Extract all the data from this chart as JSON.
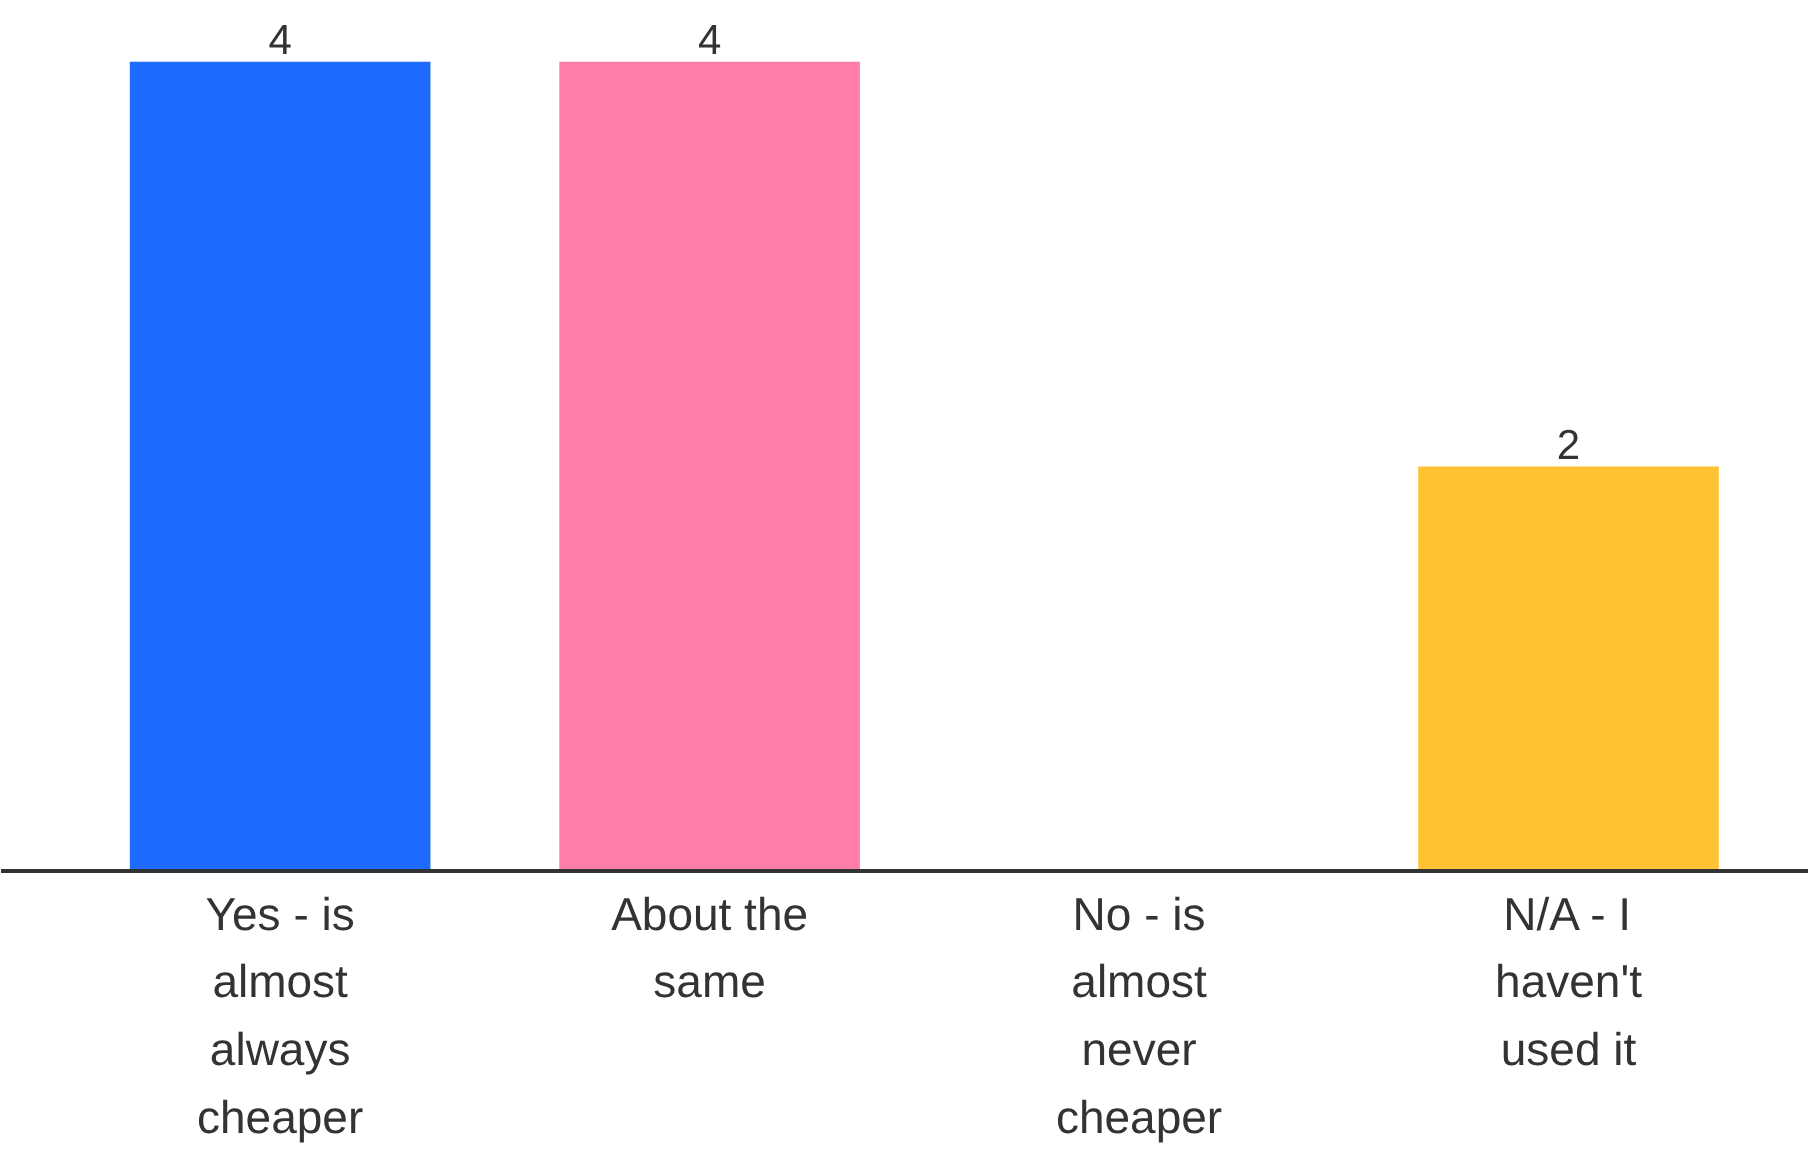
{
  "chart_data": {
    "type": "bar",
    "categories": [
      "Yes - is almost always cheaper",
      "About the same",
      "No - is almost never cheaper",
      "N/A - I haven't used it"
    ],
    "values": [
      4,
      4,
      0,
      2
    ],
    "colors": [
      "#1f6bff",
      "#ff7ea8",
      "#9e9e9e",
      "#ffc233"
    ],
    "value_labels": [
      "4",
      "4",
      null,
      "2"
    ],
    "ylim": [
      0,
      4
    ]
  }
}
